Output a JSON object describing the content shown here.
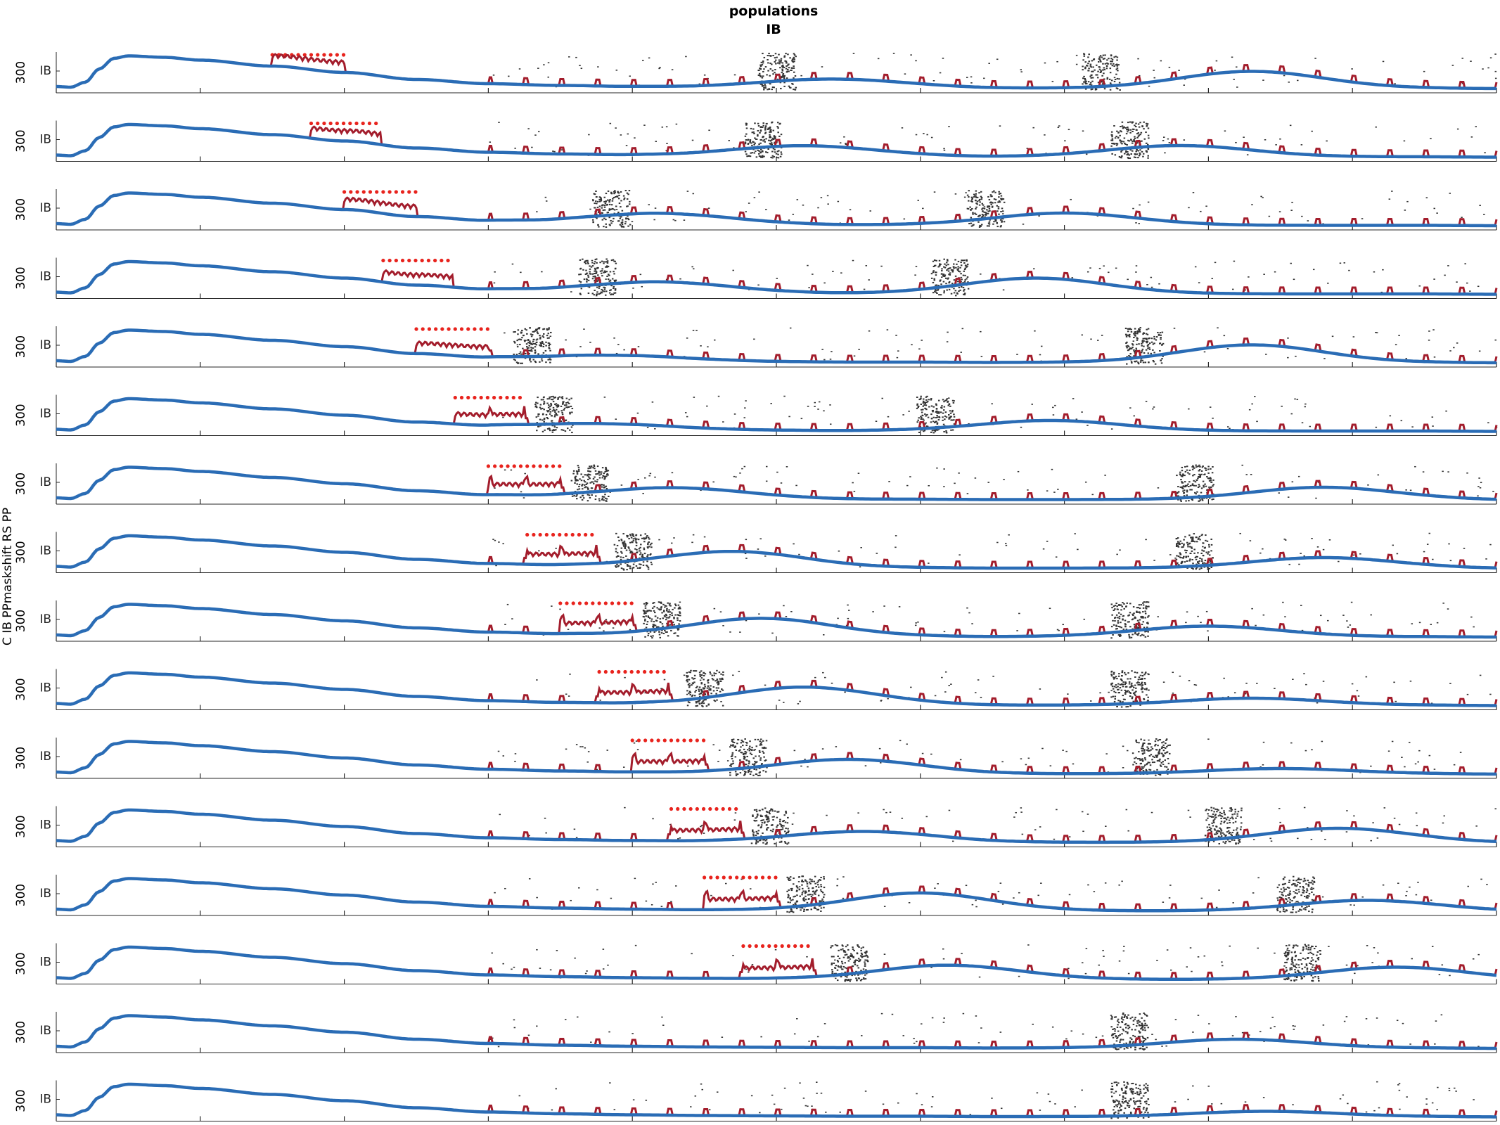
{
  "chart_data": {
    "type": "line",
    "title": "populations",
    "subtitle": "IB",
    "ylabel": "C IB PPmaskshift RS PP",
    "panel_ytick_label": "IB",
    "panel_count": 16,
    "xlim": [
      0,
      1000
    ],
    "x_ticks": [
      0,
      100,
      200,
      300,
      400,
      500,
      600,
      700,
      800,
      900,
      1000
    ],
    "ylim": [
      0,
      1
    ],
    "y_strip_labels": [
      "300",
      "300",
      "300",
      "300",
      "300",
      "300",
      "300",
      "300",
      "300",
      "300",
      "300",
      "300",
      "300",
      "300",
      "300",
      "300"
    ],
    "colors": {
      "trace": "#2a6cb5",
      "response": "#a31d2c",
      "stimulus": "#e8231d",
      "raster": "#333333",
      "axis": "#262626"
    },
    "baseline_trace": {
      "x": [
        0,
        10,
        20,
        30,
        40,
        50,
        75,
        100,
        150,
        200,
        250,
        300,
        350,
        400,
        450,
        500,
        550,
        600,
        650,
        700,
        750,
        800,
        850,
        900,
        950,
        1000
      ],
      "y": [
        0.1,
        0.08,
        0.22,
        0.6,
        0.9,
        0.97,
        0.93,
        0.85,
        0.68,
        0.5,
        0.3,
        0.18,
        0.13,
        0.1,
        0.08,
        0.07,
        0.06,
        0.06,
        0.05,
        0.05,
        0.05,
        0.05,
        0.05,
        0.05,
        0.05,
        0.04
      ]
    },
    "panels": [
      {
        "stim_on": 150,
        "stim_off": 200,
        "sync": [
          500,
          725
        ],
        "hump": [
          [
            540,
            0.25
          ],
          [
            830,
            0.48
          ]
        ]
      },
      {
        "stim_on": 177,
        "stim_off": 225,
        "sync": [
          490,
          745
        ],
        "hump": [
          [
            520,
            0.3
          ],
          [
            780,
            0.32
          ]
        ]
      },
      {
        "stim_on": 200,
        "stim_off": 250,
        "sync": [
          385,
          645
        ],
        "hump": [
          [
            420,
            0.3
          ],
          [
            700,
            0.35
          ]
        ]
      },
      {
        "stim_on": 227,
        "stim_off": 275,
        "sync": [
          375,
          620
        ],
        "hump": [
          [
            420,
            0.3
          ],
          [
            680,
            0.45
          ]
        ]
      },
      {
        "stim_on": 250,
        "stim_off": 300,
        "sync": [
          330,
          755
        ],
        "hump": [
          [
            390,
            0.15
          ],
          [
            830,
            0.5
          ]
        ]
      },
      {
        "stim_on": 277,
        "stim_off": 325,
        "sync": [
          345,
          610
        ],
        "hump": [
          [
            380,
            0.15
          ],
          [
            690,
            0.3
          ]
        ]
      },
      {
        "stim_on": 300,
        "stim_off": 350,
        "sync": [
          370,
          790
        ],
        "hump": [
          [
            430,
            0.3
          ],
          [
            880,
            0.35
          ]
        ]
      },
      {
        "stim_on": 327,
        "stim_off": 375,
        "sync": [
          400,
          790
        ],
        "hump": [
          [
            470,
            0.45
          ],
          [
            880,
            0.3
          ]
        ]
      },
      {
        "stim_on": 350,
        "stim_off": 400,
        "sync": [
          420,
          745
        ],
        "hump": [
          [
            490,
            0.5
          ],
          [
            800,
            0.3
          ]
        ]
      },
      {
        "stim_on": 377,
        "stim_off": 425,
        "sync": [
          450,
          745
        ],
        "hump": [
          [
            520,
            0.5
          ],
          [
            830,
            0.2
          ]
        ]
      },
      {
        "stim_on": 400,
        "stim_off": 450,
        "sync": [
          480,
          760
        ],
        "hump": [
          [
            550,
            0.4
          ],
          [
            850,
            0.15
          ]
        ]
      },
      {
        "stim_on": 427,
        "stim_off": 475,
        "sync": [
          495,
          810
        ],
        "hump": [
          [
            560,
            0.3
          ],
          [
            890,
            0.4
          ]
        ]
      },
      {
        "stim_on": 450,
        "stim_off": 500,
        "sync": [
          520,
          860
        ],
        "hump": [
          [
            600,
            0.5
          ],
          [
            910,
            0.3
          ]
        ]
      },
      {
        "stim_on": 477,
        "stim_off": 525,
        "sync": [
          550,
          865
        ],
        "hump": [
          [
            620,
            0.4
          ],
          [
            930,
            0.35
          ]
        ]
      },
      {
        "stim_on": null,
        "stim_off": null,
        "sync": [
          745
        ],
        "hump": [
          [
            820,
            0.25
          ]
        ]
      },
      {
        "stim_on": null,
        "stim_off": null,
        "sync": [
          745
        ],
        "hump": [
          [
            840,
            0.15
          ]
        ]
      }
    ]
  }
}
